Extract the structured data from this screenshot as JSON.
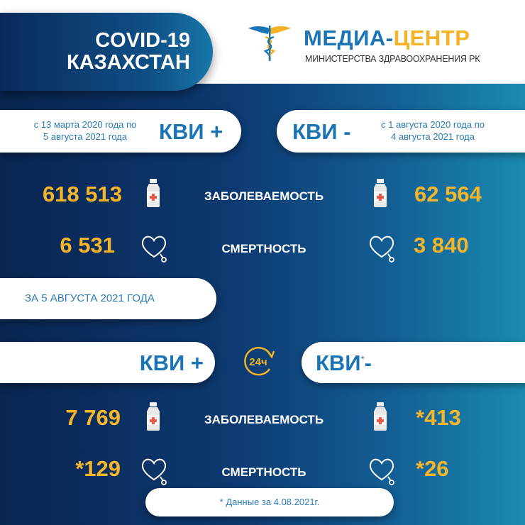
{
  "header": {
    "title_line1": "COVID-19",
    "title_line2": "КАЗАХСТАН",
    "logo": {
      "part1": "МЕДИА-",
      "part2": "ЦЕНТР",
      "subtitle": "МИНИСТЕРСТВА ЗДРАВООХРАНЕНИЯ РК",
      "icon": "caduceus-icon"
    }
  },
  "colors": {
    "brand_blue": "#1b75b5",
    "accent_yellow": "#f7b52a",
    "background_dark": "#0a2550",
    "background_teal": "#1a8bb0"
  },
  "cumulative": {
    "positive": {
      "label": "КВИ +",
      "period_line1": "с 13 марта 2020 года по",
      "period_line2": "5 августа 2021 года",
      "cases": "618 513",
      "deaths": "6 531"
    },
    "negative": {
      "label": "КВИ -",
      "period_line1": "с 1 августа 2020 года по",
      "period_line2": "4 августа 2021 года",
      "cases": "62 564",
      "deaths": "3 840"
    }
  },
  "labels": {
    "cases": "ЗАБОЛЕВАЕМОСТЬ",
    "deaths": "СМЕРТНОСТЬ"
  },
  "daily": {
    "date_label": "ЗА 5 АВГУСТА 2021 ГОДА",
    "clock_icon": "24ч",
    "positive": {
      "label": "КВИ +",
      "cases": "7 769",
      "deaths": "*129"
    },
    "negative": {
      "label": "КВИ",
      "asterisk": "*",
      "suffix": "-",
      "cases": "*413",
      "deaths": "*26"
    }
  },
  "footnote": "* Данные за 4.08.2021г."
}
